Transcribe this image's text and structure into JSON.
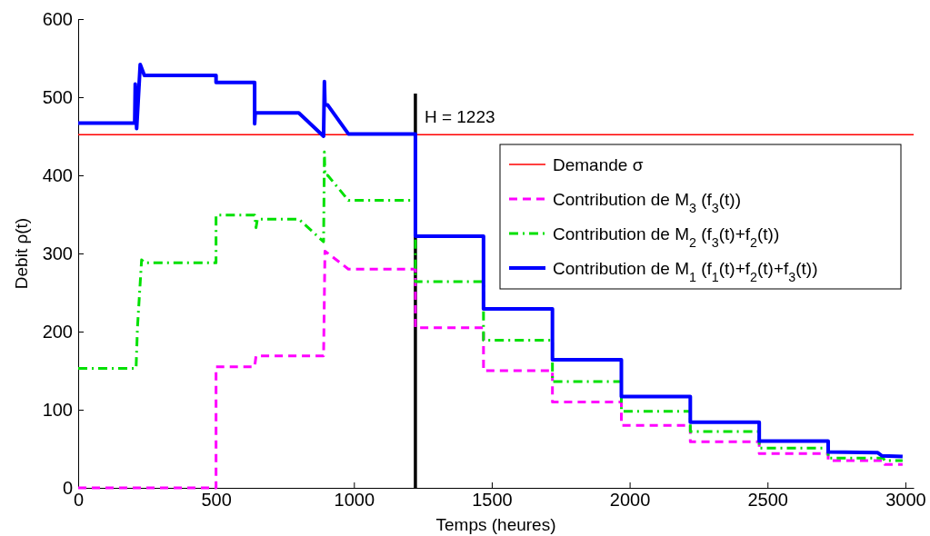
{
  "chart_data": {
    "type": "line",
    "xlabel": "Temps (heures)",
    "ylabel": "Debit ρ(t)",
    "xlim": [
      0,
      3030
    ],
    "ylim": [
      0,
      600
    ],
    "xticks": [
      0,
      500,
      1000,
      1500,
      2000,
      2500,
      3000
    ],
    "yticks": [
      0,
      100,
      200,
      300,
      400,
      500,
      600
    ],
    "grid": false,
    "legend": "top right",
    "marker": "none",
    "ref_lines": [
      {
        "axis": "x",
        "value": 1223,
        "label": "H = 1223",
        "color": "#000000",
        "line_style": "solid"
      }
    ],
    "series": [
      {
        "name": "Demande σ",
        "color": "#ff0000",
        "line_style": "solid",
        "x": [
          0,
          3030
        ],
        "values": [
          452,
          452
        ]
      },
      {
        "name": "Contribution de M$_{3}$ (f$_{3}$(t))",
        "color": "#ff00ff",
        "line_style": "dashed",
        "x": [
          0,
          500,
          500,
          640,
          645,
          890,
          895,
          980,
          1223,
          1223,
          1470,
          1470,
          1720,
          1720,
          1970,
          1970,
          2220,
          2220,
          2470,
          2470,
          2720,
          2720,
          2920,
          2925,
          2990
        ],
        "values": [
          0,
          0,
          155,
          155,
          169,
          169,
          303,
          280,
          280,
          205,
          205,
          150,
          150,
          110,
          110,
          80,
          80,
          59,
          59,
          44,
          44,
          35,
          35,
          30,
          30
        ]
      },
      {
        "name": "Contribution de M$_{2}$ (f$_{3}$(t)+f$_{2}$(t))",
        "color": "#00e000",
        "line_style": "dashdot",
        "x": [
          0,
          210,
          215,
          230,
          240,
          500,
          500,
          640,
          645,
          650,
          800,
          890,
          893,
          895,
          905,
          980,
          1223,
          1223,
          1470,
          1470,
          1720,
          1720,
          1970,
          1970,
          2220,
          2220,
          2470,
          2470,
          2720,
          2720,
          2920,
          2925,
          2990
        ],
        "values": [
          153,
          153,
          205,
          292,
          288,
          288,
          349,
          349,
          333,
          344,
          344,
          315,
          430,
          400,
          400,
          368,
          368,
          264,
          264,
          189,
          189,
          136,
          136,
          98,
          98,
          72,
          72,
          51,
          51,
          38,
          38,
          35,
          35
        ]
      },
      {
        "name": "Contribution de M$_{1}$ (f$_{1}$(t)+f$_{2}$(t)+f$_{3}$(t))",
        "color": "#0000ff",
        "line_style": "solid",
        "x": [
          0,
          205,
          207,
          212,
          225,
          240,
          500,
          500,
          640,
          640,
          642,
          645,
          800,
          890,
          893,
          895,
          905,
          980,
          1223,
          1223,
          1470,
          1470,
          1720,
          1720,
          1970,
          1970,
          2220,
          2220,
          2470,
          2470,
          2720,
          2720,
          2900,
          2915,
          2990
        ],
        "values": [
          467,
          467,
          517,
          460,
          542,
          528,
          528,
          519,
          519,
          466,
          480,
          480,
          480,
          450,
          520,
          490,
          490,
          453,
          453,
          322,
          322,
          229,
          229,
          164,
          164,
          117,
          117,
          84,
          84,
          60,
          60,
          46,
          45,
          41,
          40
        ]
      }
    ]
  }
}
